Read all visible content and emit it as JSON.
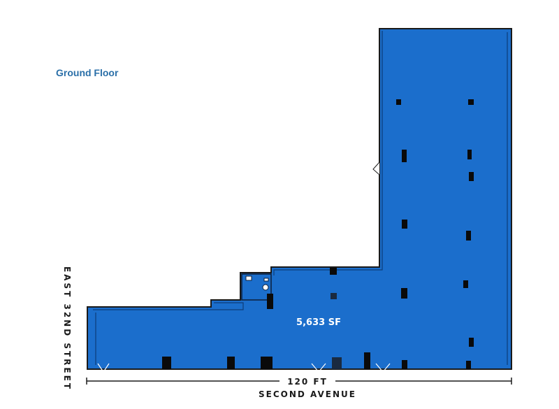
{
  "plan": {
    "title": "Ground Floor",
    "area_label": "5,633 SF",
    "street_label": "EAST 32ND STREET",
    "dimension_label": "120 FT",
    "avenue_label": "SECOND AVENUE"
  },
  "colors": {
    "floor_fill": "#1b6ecc",
    "outline": "#1a1a1a",
    "title": "#2a6fa8",
    "column": "#0a0a0a"
  }
}
